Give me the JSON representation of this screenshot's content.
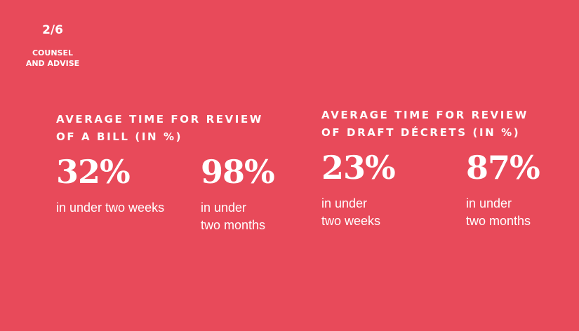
{
  "page": {
    "counter": "2/6",
    "section": [
      "COUNSEL",
      "AND ADVISE"
    ]
  },
  "panels": [
    {
      "heading": [
        "AVERAGE TIME FOR REVIEW",
        "OF A BILL (IN %)"
      ],
      "stats": [
        {
          "value": "32%",
          "caption": [
            "in under two weeks"
          ]
        },
        {
          "value": "98%",
          "caption": [
            "in under",
            "two months"
          ]
        }
      ]
    },
    {
      "heading": [
        "AVERAGE TIME FOR REVIEW",
        "OF DRAFT DÉCRETS (IN %)"
      ],
      "stats": [
        {
          "value": "23%",
          "caption": [
            "in under",
            "two weeks"
          ]
        },
        {
          "value": "87%",
          "caption": [
            "in under",
            "two months"
          ]
        }
      ]
    }
  ]
}
